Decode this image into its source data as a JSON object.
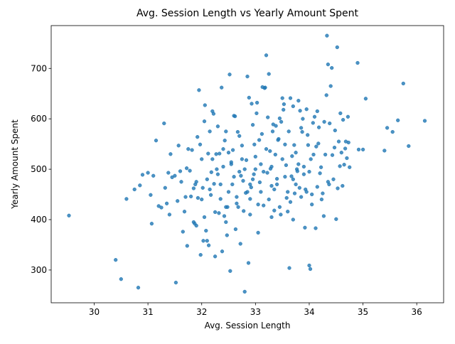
{
  "chart_data": {
    "type": "scatter",
    "title": "Avg. Session Length vs Yearly Amount Spent",
    "xlabel": "Avg. Session Length",
    "ylabel": "Yearly Amount Spent",
    "xlim": [
      29.2,
      36.5
    ],
    "ylim": [
      235,
      785
    ],
    "xticks": [
      30,
      31,
      32,
      33,
      34,
      35,
      36
    ],
    "yticks": [
      300,
      400,
      500,
      600,
      700
    ],
    "xtick_labels": [
      "30",
      "31",
      "32",
      "33",
      "34",
      "35",
      "36"
    ],
    "ytick_labels": [
      "300",
      "400",
      "500",
      "600",
      "700"
    ],
    "grid": false,
    "marker_color": "#1f77b4",
    "points": [
      [
        29.53,
        408
      ],
      [
        30.4,
        320
      ],
      [
        30.5,
        282
      ],
      [
        30.6,
        441
      ],
      [
        30.75,
        460
      ],
      [
        30.82,
        265
      ],
      [
        30.85,
        468
      ],
      [
        30.9,
        489
      ],
      [
        31.0,
        493
      ],
      [
        31.05,
        449
      ],
      [
        31.07,
        392
      ],
      [
        31.1,
        487
      ],
      [
        31.15,
        557
      ],
      [
        31.2,
        427
      ],
      [
        31.25,
        424
      ],
      [
        31.3,
        591
      ],
      [
        31.32,
        463
      ],
      [
        31.35,
        432
      ],
      [
        31.38,
        493
      ],
      [
        31.4,
        410
      ],
      [
        31.42,
        530
      ],
      [
        31.45,
        484
      ],
      [
        31.5,
        487
      ],
      [
        31.52,
        275
      ],
      [
        31.55,
        437
      ],
      [
        31.57,
        547
      ],
      [
        31.6,
        496
      ],
      [
        31.62,
        475
      ],
      [
        31.65,
        376
      ],
      [
        31.68,
        416
      ],
      [
        31.7,
        445
      ],
      [
        31.72,
        502
      ],
      [
        31.73,
        348
      ],
      [
        31.75,
        540
      ],
      [
        31.78,
        497
      ],
      [
        31.8,
        446
      ],
      [
        31.82,
        538
      ],
      [
        31.85,
        462
      ],
      [
        31.87,
        392
      ],
      [
        31.88,
        470
      ],
      [
        31.9,
        388
      ],
      [
        31.92,
        564
      ],
      [
        31.93,
        443
      ],
      [
        31.95,
        657
      ],
      [
        31.97,
        549
      ],
      [
        31.98,
        330
      ],
      [
        32.0,
        520
      ],
      [
        32.02,
        463
      ],
      [
        32.03,
        358
      ],
      [
        32.05,
        595
      ],
      [
        32.06,
        627
      ],
      [
        32.08,
        378
      ],
      [
        32.1,
        358
      ],
      [
        32.12,
        531
      ],
      [
        32.13,
        349
      ],
      [
        32.15,
        575
      ],
      [
        32.17,
        449
      ],
      [
        32.18,
        494
      ],
      [
        32.2,
        615
      ],
      [
        32.22,
        610
      ],
      [
        32.23,
        471
      ],
      [
        32.25,
        327
      ],
      [
        32.27,
        530
      ],
      [
        32.28,
        500
      ],
      [
        32.3,
        585
      ],
      [
        32.32,
        413
      ],
      [
        32.33,
        531
      ],
      [
        32.35,
        441
      ],
      [
        32.37,
        662
      ],
      [
        32.38,
        337
      ],
      [
        32.4,
        505
      ],
      [
        32.42,
        407
      ],
      [
        32.43,
        557
      ],
      [
        32.45,
        575
      ],
      [
        32.47,
        369
      ],
      [
        32.48,
        425
      ],
      [
        32.5,
        533
      ],
      [
        32.52,
        688
      ],
      [
        32.53,
        298
      ],
      [
        32.55,
        514
      ],
      [
        32.57,
        470
      ],
      [
        32.58,
        538
      ],
      [
        32.6,
        606
      ],
      [
        32.62,
        605
      ],
      [
        32.63,
        381
      ],
      [
        32.65,
        432
      ],
      [
        32.67,
        574
      ],
      [
        32.68,
        425
      ],
      [
        32.7,
        566
      ],
      [
        32.72,
        352
      ],
      [
        32.73,
        487
      ],
      [
        32.75,
        547
      ],
      [
        32.77,
        477
      ],
      [
        32.78,
        417
      ],
      [
        32.8,
        257
      ],
      [
        32.82,
        453
      ],
      [
        32.83,
        518
      ],
      [
        32.85,
        684
      ],
      [
        32.87,
        314
      ],
      [
        32.88,
        642
      ],
      [
        32.9,
        441
      ],
      [
        32.92,
        464
      ],
      [
        32.93,
        630
      ],
      [
        32.95,
        588
      ],
      [
        32.97,
        490
      ],
      [
        32.98,
        549
      ],
      [
        33.0,
        500
      ],
      [
        33.02,
        611
      ],
      [
        33.03,
        632
      ],
      [
        33.05,
        374
      ],
      [
        33.07,
        558
      ],
      [
        33.08,
        474
      ],
      [
        33.1,
        510
      ],
      [
        33.12,
        570
      ],
      [
        33.13,
        663
      ],
      [
        33.15,
        428
      ],
      [
        33.17,
        661
      ],
      [
        33.18,
        662
      ],
      [
        33.2,
        726
      ],
      [
        33.22,
        493
      ],
      [
        33.23,
        603
      ],
      [
        33.25,
        689
      ],
      [
        33.27,
        536
      ],
      [
        33.28,
        501
      ],
      [
        33.3,
        467
      ],
      [
        33.32,
        575
      ],
      [
        33.33,
        589
      ],
      [
        33.35,
        418
      ],
      [
        33.37,
        529
      ],
      [
        33.38,
        586
      ],
      [
        33.4,
        481
      ],
      [
        33.42,
        558
      ],
      [
        33.43,
        560
      ],
      [
        33.45,
        601
      ],
      [
        33.47,
        410
      ],
      [
        33.48,
        594
      ],
      [
        33.5,
        641
      ],
      [
        33.52,
        618
      ],
      [
        33.53,
        629
      ],
      [
        33.55,
        549
      ],
      [
        33.57,
        508
      ],
      [
        33.58,
        443
      ],
      [
        33.6,
        416
      ],
      [
        33.62,
        575
      ],
      [
        33.63,
        304
      ],
      [
        33.65,
        641
      ],
      [
        33.67,
        486
      ],
      [
        33.68,
        526
      ],
      [
        33.7,
        625
      ],
      [
        33.72,
        548
      ],
      [
        33.73,
        452
      ],
      [
        33.75,
        533
      ],
      [
        33.77,
        500
      ],
      [
        33.78,
        496
      ],
      [
        33.8,
        636
      ],
      [
        33.82,
        463
      ],
      [
        33.83,
        616
      ],
      [
        33.85,
        582
      ],
      [
        33.87,
        574
      ],
      [
        33.88,
        600
      ],
      [
        33.9,
        505
      ],
      [
        33.92,
        384
      ],
      [
        33.93,
        460
      ],
      [
        33.95,
        619
      ],
      [
        33.97,
        568
      ],
      [
        33.98,
        548
      ],
      [
        34.0,
        309
      ],
      [
        34.02,
        302
      ],
      [
        34.03,
        520
      ],
      [
        34.05,
        450
      ],
      [
        34.07,
        592
      ],
      [
        34.08,
        529
      ],
      [
        34.1,
        604
      ],
      [
        34.12,
        383
      ],
      [
        34.13,
        545
      ],
      [
        34.15,
        615
      ],
      [
        34.17,
        551
      ],
      [
        34.18,
        583
      ],
      [
        34.2,
        492
      ],
      [
        34.22,
        504
      ],
      [
        34.23,
        440
      ],
      [
        34.25,
        452
      ],
      [
        34.27,
        407
      ],
      [
        34.28,
        594
      ],
      [
        34.3,
        529
      ],
      [
        34.32,
        647
      ],
      [
        34.33,
        765
      ],
      [
        34.35,
        708
      ],
      [
        34.37,
        470
      ],
      [
        34.38,
        591
      ],
      [
        34.4,
        665
      ],
      [
        34.42,
        701
      ],
      [
        34.43,
        528
      ],
      [
        34.45,
        480
      ],
      [
        34.47,
        543
      ],
      [
        34.48,
        577
      ],
      [
        34.5,
        401
      ],
      [
        34.52,
        742
      ],
      [
        34.53,
        462
      ],
      [
        34.55,
        555
      ],
      [
        34.57,
        506
      ],
      [
        34.58,
        611
      ],
      [
        34.6,
        533
      ],
      [
        34.62,
        467
      ],
      [
        34.63,
        598
      ],
      [
        34.65,
        509
      ],
      [
        34.67,
        541
      ],
      [
        34.68,
        555
      ],
      [
        34.7,
        522
      ],
      [
        34.72,
        604
      ],
      [
        34.73,
        553
      ],
      [
        34.75,
        504
      ],
      [
        34.9,
        711
      ],
      [
        34.92,
        539
      ],
      [
        35.0,
        539
      ],
      [
        35.05,
        640
      ],
      [
        35.4,
        537
      ],
      [
        35.45,
        582
      ],
      [
        35.55,
        574
      ],
      [
        35.65,
        597
      ],
      [
        35.75,
        670
      ],
      [
        35.85,
        546
      ],
      [
        36.15,
        596
      ],
      [
        32.1,
        480
      ],
      [
        32.3,
        490
      ],
      [
        32.5,
        455
      ],
      [
        32.7,
        495
      ],
      [
        32.9,
        470
      ],
      [
        33.1,
        455
      ],
      [
        33.3,
        505
      ],
      [
        33.5,
        520
      ],
      [
        33.7,
        480
      ],
      [
        33.9,
        490
      ],
      [
        32.2,
        520
      ],
      [
        32.4,
        540
      ],
      [
        32.6,
        485
      ],
      [
        32.8,
        500
      ],
      [
        33.0,
        525
      ],
      [
        33.2,
        540
      ],
      [
        33.4,
        470
      ],
      [
        33.6,
        455
      ],
      [
        33.8,
        510
      ],
      [
        34.0,
        495
      ],
      [
        31.9,
        475
      ],
      [
        32.0,
        440
      ],
      [
        32.15,
        460
      ],
      [
        32.35,
        470
      ],
      [
        32.55,
        510
      ],
      [
        32.75,
        520
      ],
      [
        32.95,
        480
      ],
      [
        33.15,
        495
      ],
      [
        33.35,
        460
      ],
      [
        33.55,
        485
      ],
      [
        33.75,
        470
      ],
      [
        33.95,
        455
      ],
      [
        34.15,
        465
      ],
      [
        34.35,
        475
      ],
      [
        32.25,
        415
      ],
      [
        32.45,
        425
      ],
      [
        32.65,
        445
      ],
      [
        32.85,
        455
      ],
      [
        33.05,
        430
      ],
      [
        33.25,
        440
      ],
      [
        33.45,
        425
      ],
      [
        33.65,
        435
      ],
      [
        33.85,
        445
      ],
      [
        34.05,
        430
      ],
      [
        31.85,
        395
      ],
      [
        32.05,
        405
      ],
      [
        32.45,
        395
      ],
      [
        32.9,
        410
      ],
      [
        33.3,
        405
      ],
      [
        33.7,
        400
      ]
    ]
  }
}
